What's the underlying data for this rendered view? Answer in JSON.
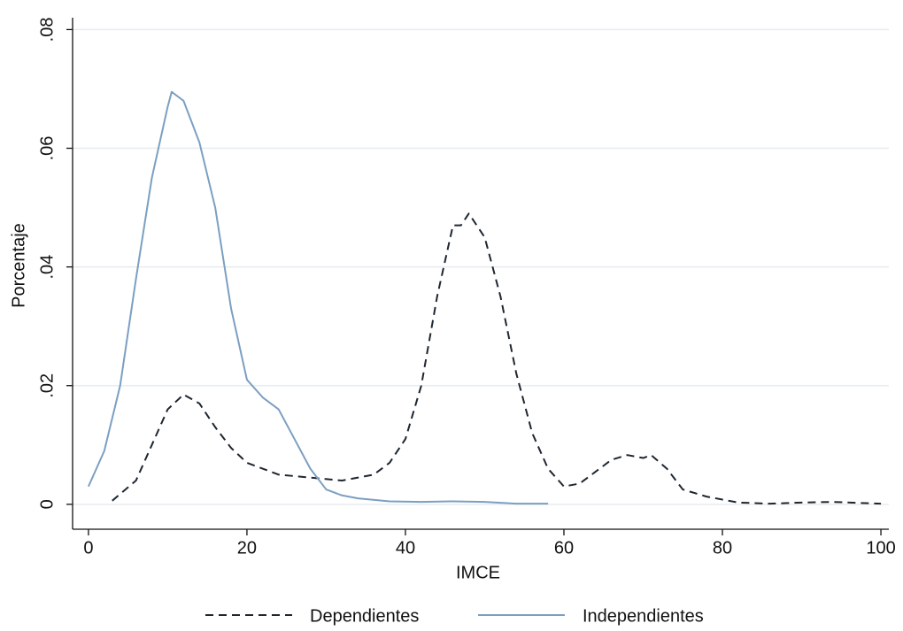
{
  "chart_data": {
    "type": "line",
    "xlabel": "IMCE",
    "ylabel": "Porcentaje",
    "xlim": [
      -2,
      101
    ],
    "ylim": [
      -0.0042,
      0.082
    ],
    "xticks": [
      0,
      20,
      40,
      60,
      80,
      100
    ],
    "yticks": [
      0,
      {
        "value": 0.02,
        "label": ".02"
      },
      {
        "value": 0.04,
        "label": ".04"
      },
      {
        "value": 0.06,
        "label": ".06"
      },
      {
        "value": 0.08,
        "label": ".08"
      }
    ],
    "grid": true,
    "legend": "bottom",
    "series": [
      {
        "name": "Dependientes",
        "color": "#1e2630",
        "linestyle": "dashed",
        "x": [
          3,
          6,
          8,
          10,
          12,
          14,
          16,
          18,
          20,
          24,
          28,
          32,
          36,
          38,
          40,
          42,
          44,
          46,
          47,
          48,
          50,
          52,
          54,
          56,
          58,
          60,
          62,
          64,
          66,
          68,
          70,
          71,
          73,
          75,
          78,
          82,
          86,
          90,
          94,
          98,
          100
        ],
        "values": [
          0.0006,
          0.004,
          0.01,
          0.016,
          0.0185,
          0.017,
          0.013,
          0.0095,
          0.007,
          0.005,
          0.0045,
          0.004,
          0.005,
          0.007,
          0.011,
          0.02,
          0.035,
          0.047,
          0.047,
          0.049,
          0.045,
          0.035,
          0.022,
          0.012,
          0.006,
          0.003,
          0.0035,
          0.0055,
          0.0075,
          0.0083,
          0.0078,
          0.0083,
          0.006,
          0.0025,
          0.0013,
          0.0003,
          0.0001,
          0.0003,
          0.0004,
          0.0002,
          0.0001
        ]
      },
      {
        "name": "Independientes",
        "color": "#7b9fc2",
        "linestyle": "solid",
        "x": [
          0,
          2,
          4,
          6,
          8,
          10,
          10.5,
          12,
          14,
          16,
          18,
          20,
          22,
          24,
          26,
          28,
          30,
          32,
          34,
          38,
          42,
          46,
          50,
          54,
          58
        ],
        "values": [
          0.003,
          0.009,
          0.02,
          0.038,
          0.055,
          0.067,
          0.0695,
          0.068,
          0.061,
          0.05,
          0.033,
          0.021,
          0.018,
          0.016,
          0.011,
          0.006,
          0.0025,
          0.0015,
          0.001,
          0.0005,
          0.0004,
          0.0005,
          0.0004,
          0.0001,
          0.0001
        ]
      }
    ]
  }
}
